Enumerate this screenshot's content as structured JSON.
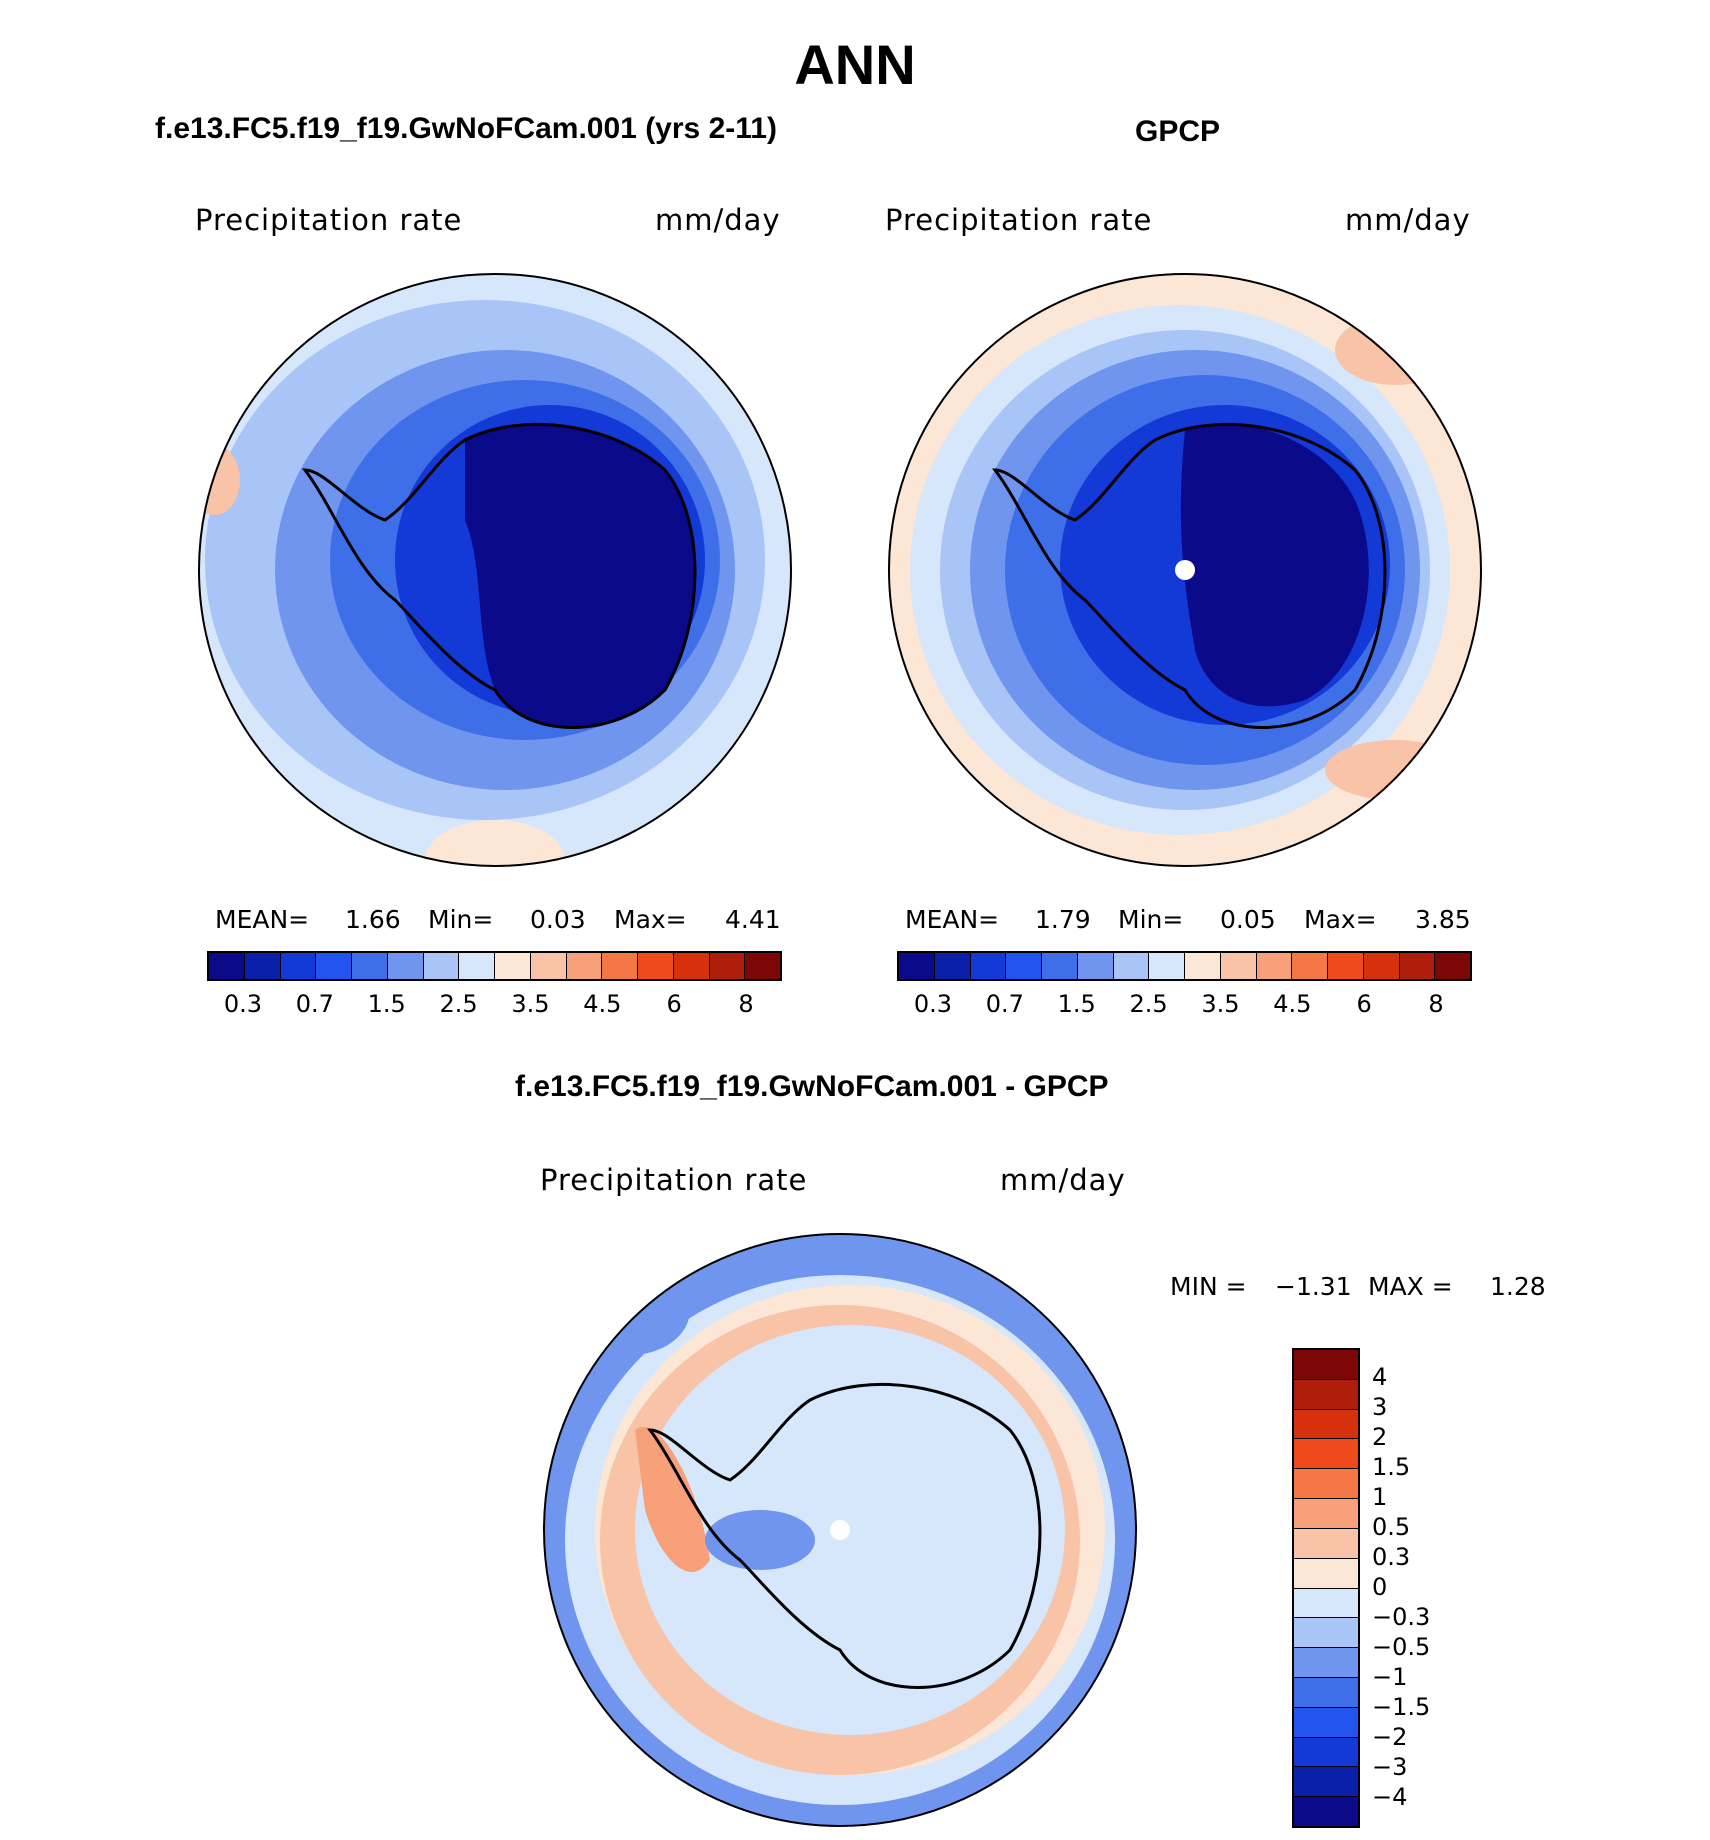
{
  "figure_title": "ANN",
  "panels": {
    "model": {
      "title": "f.e13.FC5.f19_f19.GwNoFCam.001 (yrs 2-11)",
      "variable": "Precipitation  rate",
      "units": "mm/day",
      "stats": {
        "mean_label": "MEAN=",
        "mean": "1.66",
        "min_label": "Min=",
        "min": "0.03",
        "max_label": "Max=",
        "max": "4.41"
      }
    },
    "obs": {
      "title": "GPCP",
      "variable": "Precipitation  rate",
      "units": "mm/day",
      "stats": {
        "mean_label": "MEAN=",
        "mean": "1.79",
        "min_label": "Min=",
        "min": "0.05",
        "max_label": "Max=",
        "max": "3.85"
      }
    },
    "diff": {
      "title": "f.e13.FC5.f19_f19.GwNoFCam.001 - GPCP",
      "variable": "Precipitation  rate",
      "units": "mm/day",
      "stats": {
        "min_label": "MIN =",
        "min": "−1.31",
        "max_label": "MAX =",
        "max": "1.28"
      }
    }
  },
  "colorbar_abs": {
    "tick_labels": [
      "0.3",
      "0.7",
      "1.5",
      "2.5",
      "3.5",
      "4.5",
      "6",
      "8"
    ],
    "colors": [
      "#0a0a8a",
      "#0b20a8",
      "#1339d6",
      "#2255f0",
      "#3e6ee8",
      "#6f95ee",
      "#a9c5f8",
      "#d6e6fb",
      "#fce6d6",
      "#f9c3a8",
      "#f7a07a",
      "#f47845",
      "#ef4a1c",
      "#d6310c",
      "#ae1e0a",
      "#7d0606"
    ]
  },
  "colorbar_diff": {
    "tick_labels": [
      "4",
      "3",
      "2",
      "1.5",
      "1",
      "0.5",
      "0.3",
      "0",
      "−0.3",
      "−0.5",
      "−1",
      "−1.5",
      "−2",
      "−3",
      "−4"
    ],
    "colors": [
      "#7d0606",
      "#ae1e0a",
      "#d6310c",
      "#ef4a1c",
      "#f47845",
      "#f7a07a",
      "#f9c3a8",
      "#fce6d6",
      "#d6e6fb",
      "#a9c5f8",
      "#6f95ee",
      "#3e6ee8",
      "#2255f0",
      "#1339d6",
      "#0b20a8",
      "#0a0a8a"
    ]
  },
  "map_colors": {
    "ocean_low": "#d6e6fb",
    "ring2": "#a9c5f8",
    "ring3": "#6f95ee",
    "ring4": "#3e6ee8",
    "ring5": "#1339d6",
    "core": "#0a0a8a",
    "warm": "#fce6d6",
    "warm2": "#f9c3a8",
    "warm3": "#f7a07a",
    "coast": "#000000"
  }
}
